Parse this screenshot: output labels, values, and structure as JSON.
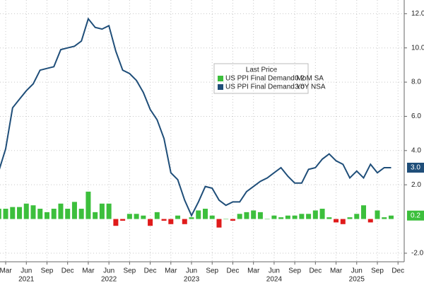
{
  "chart_data": {
    "type": "bar_line",
    "categories": [
      null,
      "Mar",
      null,
      null,
      "Jun",
      null,
      null,
      "Sep",
      null,
      null,
      "Dec",
      null,
      null,
      "Mar",
      null,
      null,
      "Jun",
      null,
      null,
      "Sep",
      null,
      null,
      "Dec",
      null,
      null,
      "Mar",
      null,
      null,
      "Jun",
      null,
      null,
      "Sep",
      null,
      null,
      "Dec",
      null,
      null,
      "Mar",
      null,
      null,
      "Jun",
      null,
      null,
      "Sep",
      null,
      null,
      "Dec",
      null,
      null,
      "Mar",
      null,
      null,
      "Jun",
      null,
      null,
      "Sep",
      null,
      null,
      "Dec"
    ],
    "years": [
      "2021",
      "2022",
      "2023",
      "2024",
      "2025"
    ],
    "legend_title": "Last Price",
    "series": [
      {
        "name": "US PPI Final Demand MoM SA",
        "type": "bar",
        "color": "#3cbf3c",
        "negative_color": "#e01b1b",
        "last_label": "0.2",
        "values": [
          0.6,
          0.6,
          0.7,
          0.7,
          0.9,
          0.8,
          0.6,
          0.4,
          0.6,
          0.9,
          0.6,
          1.0,
          0.6,
          1.6,
          0.4,
          0.9,
          0.9,
          -0.4,
          -0.1,
          0.3,
          0.3,
          0.2,
          -0.4,
          0.4,
          -0.1,
          -0.3,
          0.2,
          -0.3,
          0.1,
          0.5,
          0.6,
          0.2,
          -0.5,
          0.0,
          -0.1,
          0.3,
          0.4,
          0.5,
          0.4,
          0.0,
          0.2,
          0.1,
          0.2,
          0.2,
          0.3,
          0.3,
          0.5,
          0.6,
          0.1,
          -0.2,
          -0.3,
          0.1,
          0.3,
          0.8,
          -0.2,
          0.5,
          0.1,
          0.2,
          null
        ]
      },
      {
        "name": "US PPI Final Demand YoY NSA",
        "type": "line",
        "color": "#1f4e79",
        "last_label": "3.0",
        "values": [
          2.8,
          4.1,
          6.5,
          7.0,
          7.5,
          7.9,
          8.7,
          8.8,
          8.9,
          9.9,
          10.0,
          10.1,
          10.4,
          11.7,
          11.2,
          11.1,
          11.3,
          9.8,
          8.7,
          8.5,
          8.1,
          7.4,
          6.4,
          5.8,
          4.7,
          2.7,
          2.3,
          1.1,
          0.2,
          1.0,
          1.9,
          1.8,
          1.1,
          0.8,
          1.0,
          1.0,
          1.6,
          1.9,
          2.2,
          2.4,
          2.7,
          3.0,
          2.5,
          2.1,
          2.1,
          2.9,
          3.0,
          3.5,
          3.8,
          3.4,
          3.2,
          2.4,
          2.8,
          2.4,
          3.2,
          2.7,
          3.0,
          3.0,
          null
        ]
      }
    ],
    "ylim": [
      -2.5,
      12.8
    ],
    "yticks": [
      {
        "value": -2,
        "label": "-2.0"
      },
      {
        "value": 2,
        "label": "2.0"
      },
      {
        "value": 4,
        "label": "4.0"
      },
      {
        "value": 6,
        "label": "6.0"
      },
      {
        "value": 8,
        "label": "8.0"
      },
      {
        "value": 10,
        "label": "10.0"
      },
      {
        "value": 12,
        "label": "12.0"
      }
    ],
    "grid": true
  }
}
